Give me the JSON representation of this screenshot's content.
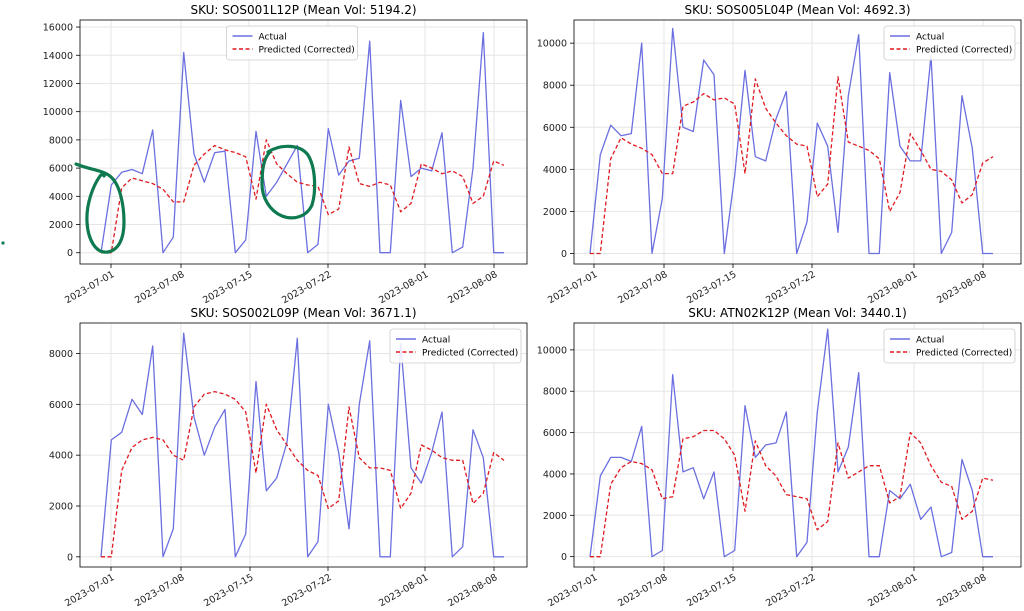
{
  "colors": {
    "actual": "#6b6fe0",
    "predicted": "#e0191f",
    "grid": "#e6e6e6",
    "axis": "#000000",
    "annotation": "#0f7a4f"
  },
  "chart_data": [
    {
      "type": "line",
      "title": "SKU: SOS001L12P (Mean Vol: 5194.2)",
      "xlabel": "",
      "ylabel": "",
      "x_tick_labels": [
        "2023-07-01",
        "2023-07-08",
        "2023-07-15",
        "2023-07-22",
        "2023-08-01",
        "2023-08-08"
      ],
      "y_ticks": [
        0,
        2000,
        4000,
        6000,
        8000,
        10000,
        12000,
        14000,
        16000
      ],
      "ylim": [
        -800,
        16500
      ],
      "grid": true,
      "legend_position": "top-center",
      "series": [
        {
          "name": "Actual",
          "style": "solid",
          "values": [
            0,
            4800,
            5700,
            5900,
            5600,
            8700,
            0,
            1100,
            14200,
            7000,
            5000,
            7100,
            7200,
            0,
            900,
            8600,
            4000,
            5000,
            6300,
            7600,
            0,
            600,
            8800,
            5500,
            6500,
            6700,
            15000,
            0,
            0,
            10800,
            5400,
            6000,
            5800,
            8500,
            0,
            400,
            6000,
            15600,
            0,
            0
          ]
        },
        {
          "name": "Predicted (Corrected)",
          "style": "dashed",
          "values": [
            0,
            0,
            4600,
            5300,
            5100,
            4900,
            4500,
            3600,
            3600,
            6200,
            7000,
            7600,
            7300,
            7100,
            6800,
            3800,
            8000,
            6300,
            5600,
            5000,
            4800,
            4700,
            2700,
            3100,
            7500,
            4900,
            4700,
            5000,
            4800,
            2900,
            3500,
            6300,
            6000,
            5600,
            5800,
            5400,
            3500,
            4000,
            6500,
            6200
          ]
        }
      ]
    },
    {
      "type": "line",
      "title": "SKU: SOS005L04P (Mean Vol: 4692.3)",
      "xlabel": "",
      "ylabel": "",
      "x_tick_labels": [
        "2023-07-01",
        "2023-07-08",
        "2023-07-15",
        "2023-07-22",
        "2023-08-01",
        "2023-08-08"
      ],
      "y_ticks": [
        0,
        2000,
        4000,
        6000,
        8000,
        10000
      ],
      "ylim": [
        -500,
        11100
      ],
      "grid": true,
      "legend_position": "top-right",
      "series": [
        {
          "name": "Actual",
          "style": "solid",
          "values": [
            0,
            4700,
            6100,
            5600,
            5700,
            10000,
            0,
            2600,
            10700,
            6000,
            5800,
            9200,
            8500,
            0,
            3700,
            8700,
            4600,
            4400,
            6400,
            7700,
            0,
            1500,
            6200,
            5100,
            1000,
            7500,
            10400,
            0,
            0,
            8600,
            5100,
            4400,
            4400,
            9400,
            0,
            1000,
            7500,
            5000,
            0,
            0
          ]
        },
        {
          "name": "Predicted (Corrected)",
          "style": "dashed",
          "values": [
            0,
            0,
            4500,
            5500,
            5200,
            5000,
            4700,
            3800,
            3800,
            7000,
            7200,
            7600,
            7300,
            7400,
            7100,
            3800,
            8300,
            6900,
            6200,
            5600,
            5200,
            5100,
            2700,
            3300,
            8400,
            5300,
            5100,
            4900,
            4500,
            2000,
            2900,
            5700,
            4900,
            4000,
            3900,
            3500,
            2400,
            2800,
            4300,
            4600
          ]
        }
      ]
    },
    {
      "type": "line",
      "title": "SKU: SOS002L09P (Mean Vol: 3671.1)",
      "xlabel": "",
      "ylabel": "",
      "x_tick_labels": [
        "2023-07-01",
        "2023-07-08",
        "2023-07-15",
        "2023-07-22",
        "2023-08-01",
        "2023-08-08"
      ],
      "y_ticks": [
        0,
        2000,
        4000,
        6000,
        8000
      ],
      "ylim": [
        -400,
        9200
      ],
      "grid": true,
      "legend_position": "top-right",
      "series": [
        {
          "name": "Actual",
          "style": "solid",
          "values": [
            0,
            4600,
            4900,
            6200,
            5600,
            8300,
            0,
            1100,
            8800,
            5500,
            4000,
            5100,
            5800,
            0,
            900,
            6900,
            2600,
            3100,
            4500,
            8600,
            0,
            600,
            6000,
            4100,
            1100,
            6000,
            8500,
            0,
            0,
            8400,
            3500,
            2900,
            4100,
            5700,
            0,
            400,
            5000,
            3900,
            0,
            0
          ]
        },
        {
          "name": "Predicted (Corrected)",
          "style": "dashed",
          "values": [
            0,
            0,
            3400,
            4300,
            4600,
            4700,
            4600,
            4000,
            3800,
            5900,
            6400,
            6500,
            6400,
            6200,
            5700,
            3300,
            6000,
            5000,
            4400,
            3800,
            3400,
            3200,
            1900,
            2200,
            5900,
            3900,
            3500,
            3500,
            3400,
            1900,
            2500,
            4400,
            4200,
            3900,
            3800,
            3800,
            2100,
            2500,
            4100,
            3800
          ]
        }
      ]
    },
    {
      "type": "line",
      "title": "SKU: ATN02K12P (Mean Vol: 3440.1)",
      "xlabel": "",
      "ylabel": "",
      "x_tick_labels": [
        "2023-07-01",
        "2023-07-08",
        "2023-07-15",
        "2023-07-22",
        "2023-08-01",
        "2023-08-08"
      ],
      "y_ticks": [
        0,
        2000,
        4000,
        6000,
        8000,
        10000
      ],
      "ylim": [
        -500,
        11300
      ],
      "grid": true,
      "legend_position": "top-right",
      "series": [
        {
          "name": "Actual",
          "style": "solid",
          "values": [
            0,
            3900,
            4800,
            4800,
            4600,
            6300,
            0,
            300,
            8800,
            4100,
            4300,
            2800,
            4100,
            0,
            300,
            7300,
            4800,
            5400,
            5500,
            7000,
            0,
            700,
            7000,
            11000,
            4100,
            5300,
            8900,
            0,
            0,
            3200,
            2800,
            3500,
            1800,
            2400,
            0,
            200,
            4700,
            3200,
            0,
            0
          ]
        },
        {
          "name": "Predicted (Corrected)",
          "style": "dashed",
          "values": [
            0,
            0,
            3500,
            4300,
            4600,
            4500,
            4200,
            2800,
            2900,
            5700,
            5800,
            6100,
            6100,
            5700,
            4900,
            2200,
            5600,
            4400,
            3900,
            3000,
            2900,
            2800,
            1300,
            1700,
            5500,
            3800,
            4100,
            4400,
            4400,
            2600,
            2900,
            6000,
            5500,
            4400,
            3600,
            3400,
            1800,
            2200,
            3800,
            3700
          ]
        }
      ]
    }
  ]
}
